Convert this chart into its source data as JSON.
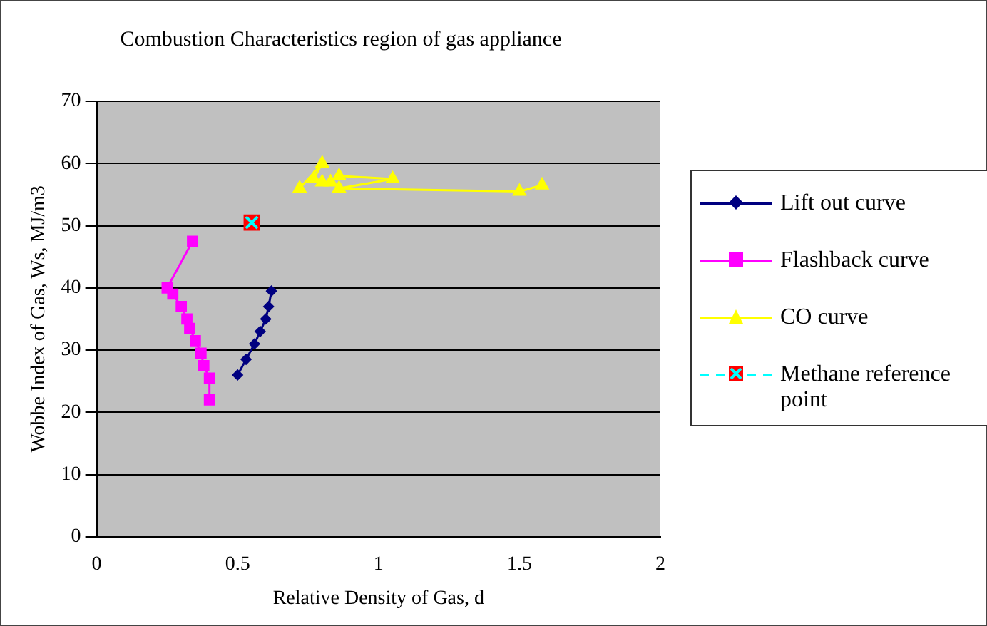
{
  "chart_data": {
    "type": "line",
    "title": "Combustion Characteristics region of gas appliance",
    "xlabel": "Relative Density of Gas, d",
    "ylabel": "Wobbe Index of Gas, Ws, MJ/m3",
    "xlim": [
      0,
      2
    ],
    "xticks": [
      0,
      0.5,
      1,
      1.5,
      2
    ],
    "ylim": [
      0,
      70
    ],
    "yticks": [
      0,
      10,
      20,
      30,
      40,
      50,
      60,
      70
    ],
    "grid": "y",
    "legend": "right",
    "series": [
      {
        "name": "Lift out curve",
        "color": "#000080",
        "marker": "diamond",
        "x": [
          0.5,
          0.53,
          0.56,
          0.58,
          0.6,
          0.61,
          0.62
        ],
        "values": [
          26,
          28.5,
          31,
          33,
          35,
          37,
          39.5
        ]
      },
      {
        "name": "Flashback curve",
        "color": "#ff00ff",
        "marker": "square",
        "x": [
          0.34,
          0.25,
          0.27,
          0.3,
          0.32,
          0.33,
          0.35,
          0.37,
          0.38,
          0.4,
          0.4
        ],
        "values": [
          47.5,
          40,
          39,
          37,
          35,
          33.5,
          31.5,
          29.5,
          27.5,
          25.5,
          22
        ]
      },
      {
        "name": "CO curve",
        "color": "#ffff00",
        "marker": "triangle",
        "x": [
          0.72,
          0.8,
          0.77,
          0.8,
          0.83,
          0.86,
          1.05,
          0.86,
          1.5,
          1.58
        ],
        "values": [
          56,
          60,
          57.5,
          57,
          57,
          58,
          57.5,
          56,
          55.5,
          56.5
        ]
      },
      {
        "name": "Methane reference point",
        "color": "#00ffff",
        "marker": "cross",
        "line_style": "dashed",
        "x": [
          0.55
        ],
        "values": [
          50.5
        ]
      }
    ]
  }
}
